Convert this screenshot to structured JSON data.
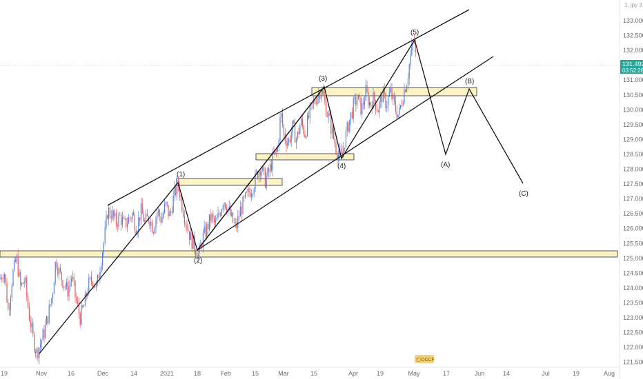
{
  "symbol_label": "1, jpy 3",
  "last_price": {
    "value": 131.492,
    "label": "131.492",
    "countdown": "03:52:28"
  },
  "colors": {
    "up": "#5b7fd6",
    "down": "#e0585c",
    "zone_fill": "#fbf3c6",
    "zone_stroke": "#2a2a2a",
    "line": "#111111",
    "tag": "#26a69a"
  },
  "watermark": "ⓒOCCF",
  "chart_data": {
    "type": "line",
    "title": "",
    "xlabel": "",
    "ylabel": "",
    "ylim": [
      121.3,
      133.5
    ],
    "grid": false,
    "x_tick_labels": [
      "19",
      "Nov",
      "16",
      "Dec",
      "14",
      "2021",
      "18",
      "Feb",
      "15",
      "Mar",
      "15",
      "Apr",
      "19",
      "May",
      "17",
      "Jun",
      "14",
      "Jul",
      "19",
      "Aug"
    ],
    "y_tick_labels": [
      "133.000",
      "132.500",
      "132.000",
      "131.500",
      "131.000",
      "130.500",
      "130.000",
      "129.500",
      "129.000",
      "128.500",
      "128.000",
      "127.500",
      "127.000",
      "126.500",
      "126.000",
      "125.500",
      "125.000",
      "124.500",
      "124.000",
      "123.500",
      "123.000",
      "122.500",
      "122.000",
      "121.500"
    ],
    "series": [
      {
        "values": [
          [
            0,
            124.3
          ],
          [
            6,
            124.6
          ],
          [
            12,
            123.2
          ],
          [
            18,
            124.4
          ],
          [
            24,
            125.0
          ],
          [
            30,
            124.0
          ],
          [
            36,
            124.3
          ],
          [
            42,
            123.1
          ],
          [
            48,
            122.3
          ],
          [
            53,
            121.8
          ],
          [
            58,
            122.1
          ],
          [
            64,
            122.5
          ],
          [
            70,
            123.1
          ],
          [
            76,
            123.8
          ],
          [
            81,
            125.0
          ],
          [
            86,
            124.5
          ],
          [
            92,
            124.2
          ],
          [
            98,
            123.9
          ],
          [
            104,
            124.4
          ],
          [
            110,
            123.6
          ],
          [
            116,
            123.0
          ],
          [
            122,
            123.4
          ],
          [
            128,
            124.1
          ],
          [
            134,
            124.3
          ],
          [
            140,
            124.0
          ],
          [
            146,
            124.9
          ],
          [
            151,
            125.6
          ],
          [
            156,
            126.6
          ],
          [
            162,
            126.5
          ],
          [
            168,
            126.2
          ],
          [
            174,
            126.4
          ],
          [
            180,
            126.1
          ],
          [
            186,
            126.3
          ],
          [
            192,
            126.5
          ],
          [
            198,
            126.0
          ],
          [
            204,
            126.6
          ],
          [
            210,
            126.2
          ],
          [
            216,
            126.4
          ],
          [
            222,
            126.0
          ],
          [
            228,
            126.6
          ],
          [
            234,
            126.3
          ],
          [
            240,
            126.8
          ],
          [
            246,
            126.4
          ],
          [
            252,
            127.1
          ],
          [
            258,
            127.5
          ],
          [
            264,
            126.8
          ],
          [
            270,
            126.2
          ],
          [
            276,
            125.7
          ],
          [
            282,
            125.4
          ],
          [
            288,
            125.1
          ],
          [
            294,
            125.7
          ],
          [
            300,
            126.0
          ],
          [
            306,
            126.4
          ],
          [
            312,
            126.1
          ],
          [
            318,
            126.5
          ],
          [
            324,
            127.0
          ],
          [
            330,
            126.7
          ],
          [
            336,
            126.3
          ],
          [
            342,
            126.0
          ],
          [
            348,
            126.6
          ],
          [
            354,
            126.9
          ],
          [
            360,
            127.2
          ],
          [
            366,
            127.4
          ],
          [
            372,
            127.8
          ],
          [
            378,
            128.1
          ],
          [
            384,
            127.6
          ],
          [
            390,
            127.9
          ],
          [
            396,
            128.4
          ],
          [
            402,
            128.6
          ],
          [
            407,
            129.9
          ],
          [
            412,
            129.1
          ],
          [
            418,
            128.9
          ],
          [
            424,
            129.4
          ],
          [
            430,
            129.0
          ],
          [
            436,
            129.6
          ],
          [
            442,
            129.2
          ],
          [
            448,
            129.8
          ],
          [
            454,
            130.2
          ],
          [
            460,
            130.5
          ],
          [
            466,
            130.7
          ],
          [
            472,
            130.1
          ],
          [
            478,
            129.6
          ],
          [
            484,
            129.0
          ],
          [
            490,
            128.5
          ],
          [
            495,
            128.4
          ],
          [
            500,
            129.0
          ],
          [
            506,
            129.6
          ],
          [
            512,
            130.1
          ],
          [
            518,
            130.4
          ],
          [
            524,
            130.0
          ],
          [
            530,
            130.6
          ],
          [
            536,
            130.2
          ],
          [
            542,
            130.4
          ],
          [
            548,
            130.0
          ],
          [
            554,
            130.5
          ],
          [
            560,
            130.2
          ],
          [
            566,
            130.6
          ],
          [
            572,
            130.1
          ],
          [
            578,
            129.8
          ],
          [
            584,
            130.5
          ],
          [
            590,
            131.0
          ],
          [
            595,
            131.8
          ],
          [
            600,
            132.4
          ],
          [
            603,
            131.6
          ]
        ]
      }
    ]
  },
  "annotations": {
    "labels": [
      "(1)",
      "(2)",
      "(3)",
      "(4)",
      "(5)",
      "(A)",
      "(B)",
      "(C)"
    ]
  }
}
